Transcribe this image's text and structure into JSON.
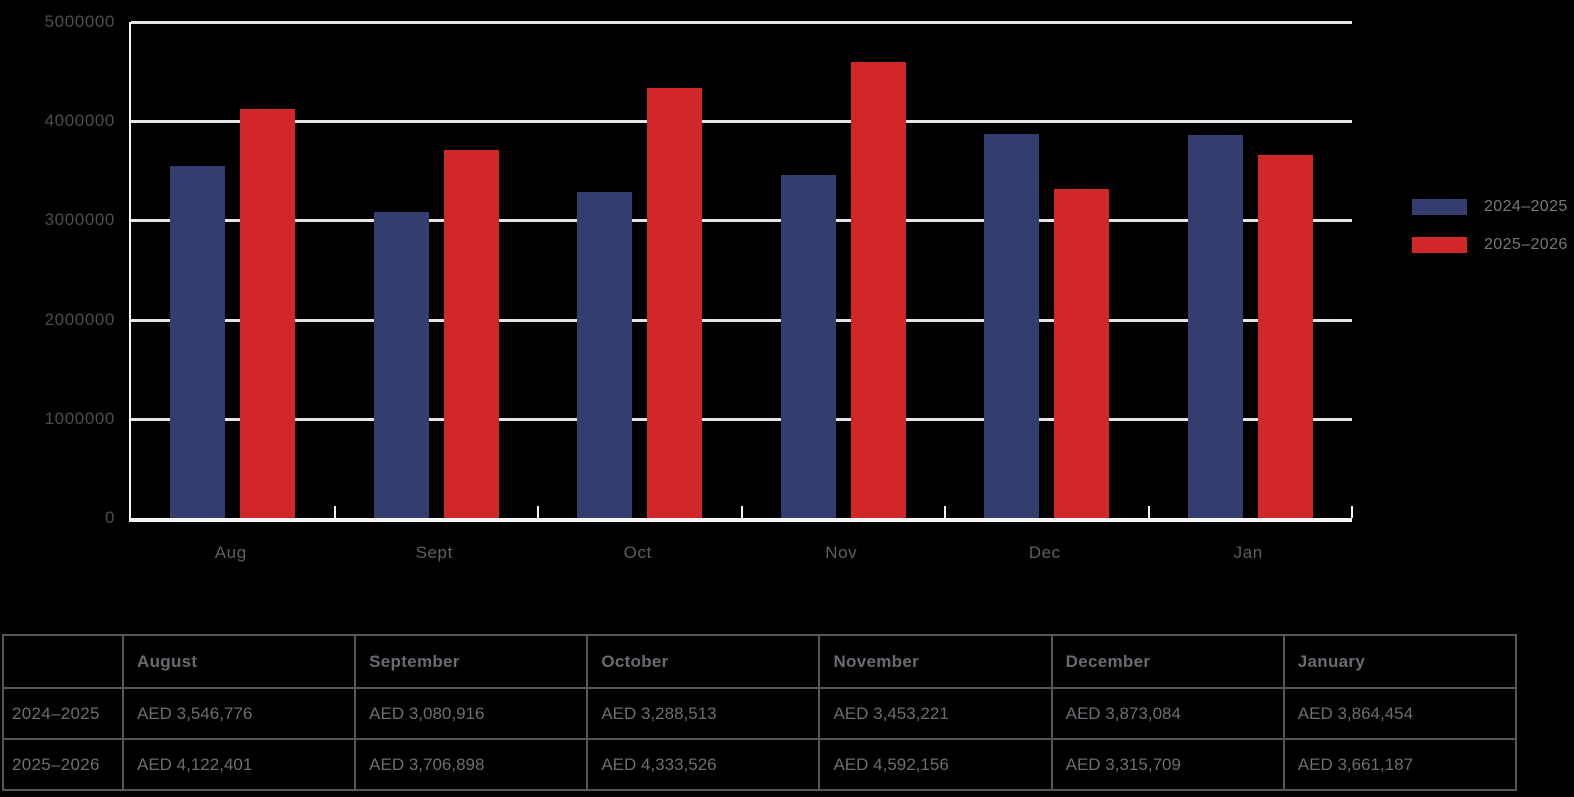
{
  "colors": {
    "background": "#000000",
    "series_blue": "#333e6e",
    "series_red": "#d22728",
    "gridline": "#e5e5e7",
    "axis": "#f6f6f6",
    "axis_label": "#4d4d52",
    "table_text": "#6a6d72",
    "table_border": "#55565a"
  },
  "chart_data": {
    "type": "bar",
    "categories": [
      "Aug",
      "Sept",
      "Oct",
      "Nov",
      "Dec",
      "Jan"
    ],
    "series": [
      {
        "name": "2024–2025",
        "color": "#333e6e",
        "values": [
          3546776,
          3080916,
          3288513,
          3453221,
          3873084,
          3864454
        ]
      },
      {
        "name": "2025–2026",
        "color": "#d22728",
        "values": [
          4122401,
          3706898,
          4333526,
          4592156,
          3315709,
          3661187
        ]
      }
    ],
    "title": "",
    "xlabel": "",
    "ylabel": "",
    "ylim": [
      0,
      5000000
    ],
    "ytick_interval": 1000000,
    "ytick_labels": [
      "5000000",
      "4000000",
      "3000000",
      "2000000",
      "1000000",
      "0"
    ],
    "grid": true,
    "legend_position": "right"
  },
  "table": {
    "corner_label": "",
    "columns": [
      "August",
      "September",
      "October",
      "November",
      "December",
      "January"
    ],
    "rows": [
      {
        "label": "2024–2025",
        "values": [
          "AED 3,546,776",
          "AED 3,080,916",
          "AED 3,288,513",
          "AED 3,453,221",
          "AED 3,873,084",
          "AED 3,864,454"
        ]
      },
      {
        "label": "2025–2026",
        "values": [
          "AED 4,122,401",
          "AED 3,706,898",
          "AED 4,333,526",
          "AED 4,592,156",
          "AED 3,315,709",
          "AED 3,661,187"
        ]
      }
    ]
  }
}
